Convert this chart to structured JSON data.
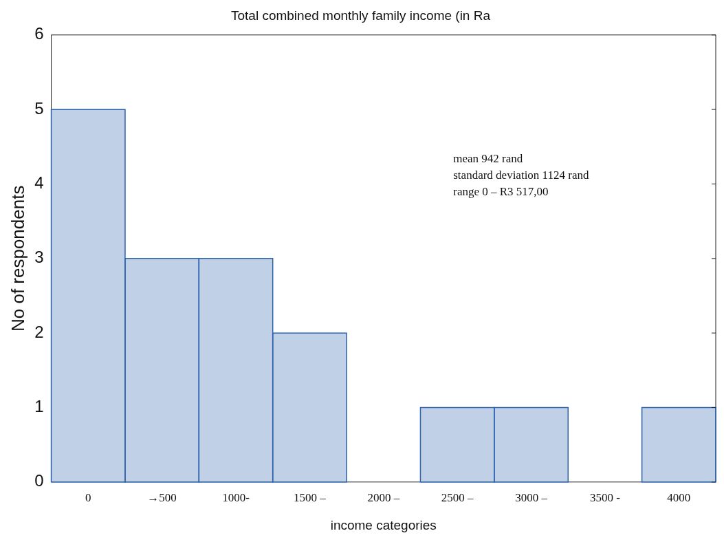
{
  "chart_data": {
    "type": "bar",
    "title": "Total combined monthly family income (in Ra",
    "xlabel": "income categories",
    "ylabel": "No of respondents",
    "categories": [
      "0",
      "→500",
      "1000-",
      "1500 –",
      "2000 –",
      "2500 –",
      "3000 –",
      "3500 -",
      "4000"
    ],
    "values": [
      5,
      3,
      3,
      2,
      0,
      1,
      1,
      0,
      1
    ],
    "color": "#2d62ad",
    "ylim": [
      0,
      6
    ],
    "yticks": [
      0,
      1,
      2,
      3,
      4,
      5,
      6
    ],
    "grid": false,
    "annotations": [
      "mean 942 rand",
      "standard deviation 1124 rand",
      "range 0 – R3 517,00"
    ]
  }
}
